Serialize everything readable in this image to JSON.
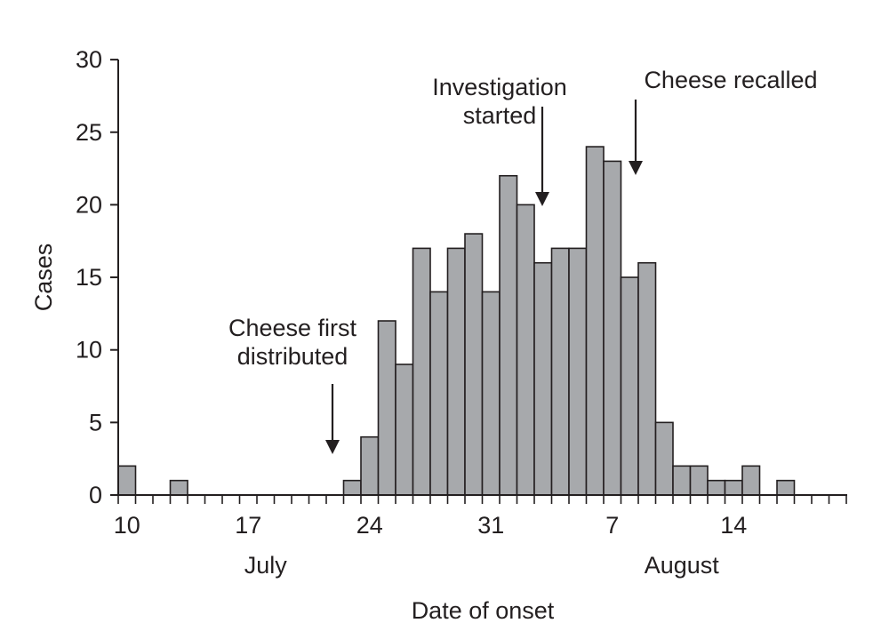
{
  "chart_data": {
    "type": "bar",
    "title": "",
    "xlabel": "Date of onset",
    "ylabel": "Cases",
    "ylim": [
      0,
      30
    ],
    "yticks": [
      0,
      5,
      10,
      15,
      20,
      25,
      30
    ],
    "grid": false,
    "legend": "none",
    "bar_color": "#a7a9ac",
    "bar_edge_color": "#231f20",
    "x_start_date": "July 10",
    "x_end_date": "August 20",
    "x_tick_labels": [
      {
        "label": "10",
        "day_index": 0
      },
      {
        "label": "17",
        "day_index": 7
      },
      {
        "label": "24",
        "day_index": 14
      },
      {
        "label": "31",
        "day_index": 21
      },
      {
        "label": "7",
        "day_index": 28
      },
      {
        "label": "14",
        "day_index": 35
      }
    ],
    "month_labels": [
      {
        "label": "July",
        "day_index": 8
      },
      {
        "label": "August",
        "day_index": 32
      }
    ],
    "categories": [
      "Jul 10",
      "Jul 11",
      "Jul 12",
      "Jul 13",
      "Jul 14",
      "Jul 15",
      "Jul 16",
      "Jul 17",
      "Jul 18",
      "Jul 19",
      "Jul 20",
      "Jul 21",
      "Jul 22",
      "Jul 23",
      "Jul 24",
      "Jul 25",
      "Jul 26",
      "Jul 27",
      "Jul 28",
      "Jul 29",
      "Jul 30",
      "Jul 31",
      "Aug 1",
      "Aug 2",
      "Aug 3",
      "Aug 4",
      "Aug 5",
      "Aug 6",
      "Aug 7",
      "Aug 8",
      "Aug 9",
      "Aug 10",
      "Aug 11",
      "Aug 12",
      "Aug 13",
      "Aug 14",
      "Aug 15",
      "Aug 16",
      "Aug 17",
      "Aug 18",
      "Aug 19",
      "Aug 20"
    ],
    "values": [
      2,
      0,
      0,
      1,
      0,
      0,
      0,
      0,
      0,
      0,
      0,
      0,
      0,
      1,
      4,
      12,
      9,
      17,
      14,
      17,
      18,
      14,
      22,
      20,
      16,
      17,
      17,
      24,
      23,
      15,
      16,
      5,
      2,
      2,
      1,
      1,
      2,
      0,
      1,
      0,
      0,
      0
    ],
    "annotations": [
      {
        "lines": [
          "Cheese first",
          "distributed"
        ],
        "date": "Jul 22"
      },
      {
        "lines": [
          "Investigation",
          "started"
        ],
        "date": "Aug 3"
      },
      {
        "lines": [
          "Cheese recalled"
        ],
        "date": "Aug 8"
      }
    ]
  }
}
